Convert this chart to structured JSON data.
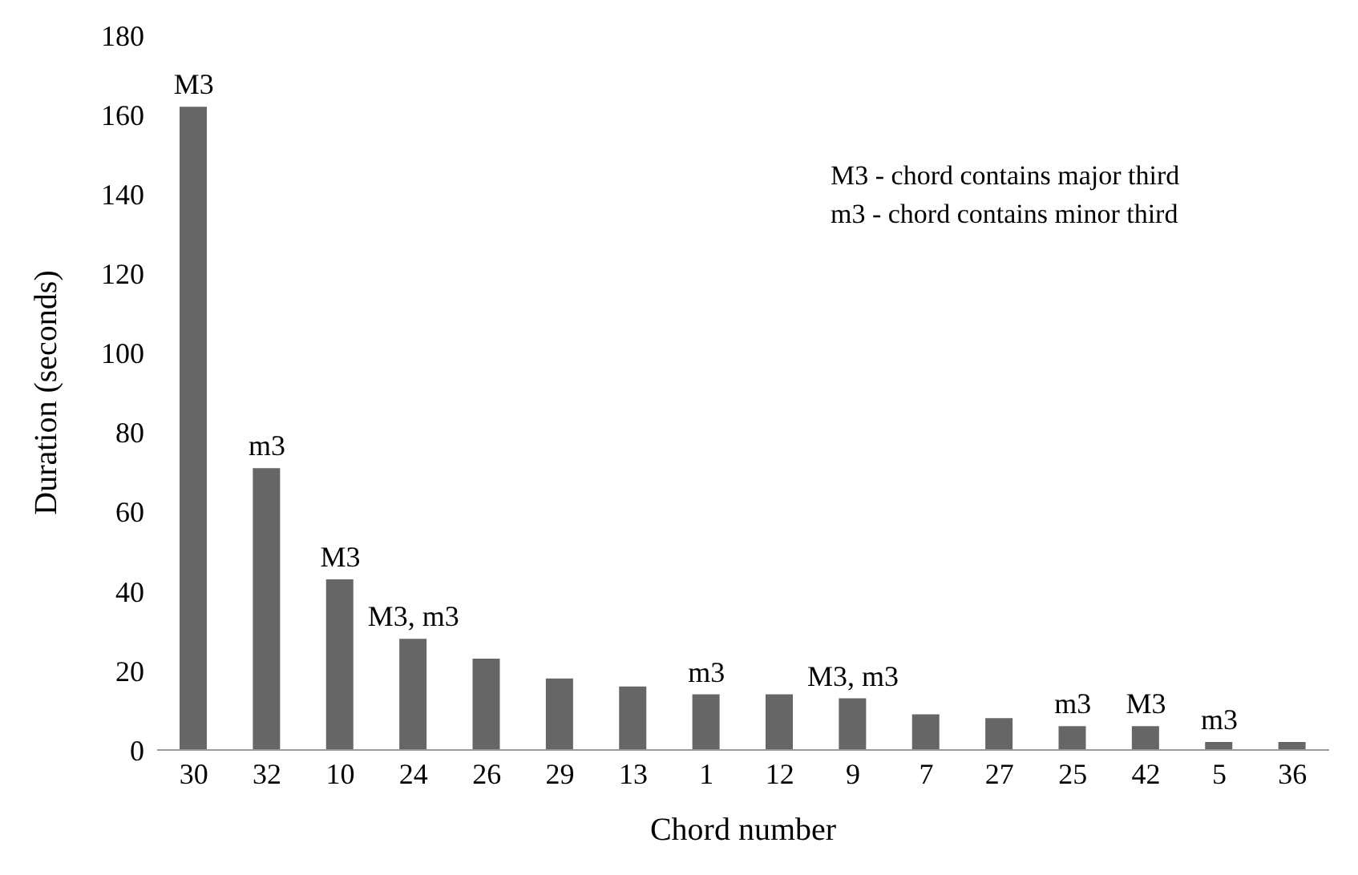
{
  "chart_data": {
    "type": "bar",
    "xlabel": "Chord number",
    "ylabel": "Duration (seconds)",
    "categories": [
      "30",
      "32",
      "10",
      "24",
      "26",
      "29",
      "13",
      "1",
      "12",
      "9",
      "7",
      "27",
      "25",
      "42",
      "5",
      "36"
    ],
    "values": [
      162,
      71,
      43,
      28,
      23,
      18,
      16,
      14,
      14,
      13,
      9,
      8,
      6,
      6,
      2,
      2
    ],
    "color": "#666666",
    "ylim": [
      0,
      180
    ],
    "yticks": [
      0,
      20,
      40,
      60,
      80,
      100,
      120,
      140,
      160,
      180
    ],
    "grid": false,
    "annotations": [
      "M3 - chord contains major third",
      "m3 - chord contains minor third",
      {
        "text": "M3",
        "x": "30",
        "y": 162
      },
      {
        "text": "m3",
        "x": "32",
        "y": 71
      },
      {
        "text": "M3",
        "x": "10",
        "y": 43
      },
      {
        "text": "M3, m3",
        "x": "24",
        "y": 28
      },
      {
        "text": "m3",
        "x": "1",
        "y": 14
      },
      {
        "text": "M3, m3",
        "x": "9",
        "y": 13
      },
      {
        "text": "m3",
        "x": "25",
        "y": 6
      },
      {
        "text": "M3",
        "x": "42",
        "y": 6
      },
      {
        "text": "m3",
        "x": "5",
        "y": 2
      }
    ]
  }
}
